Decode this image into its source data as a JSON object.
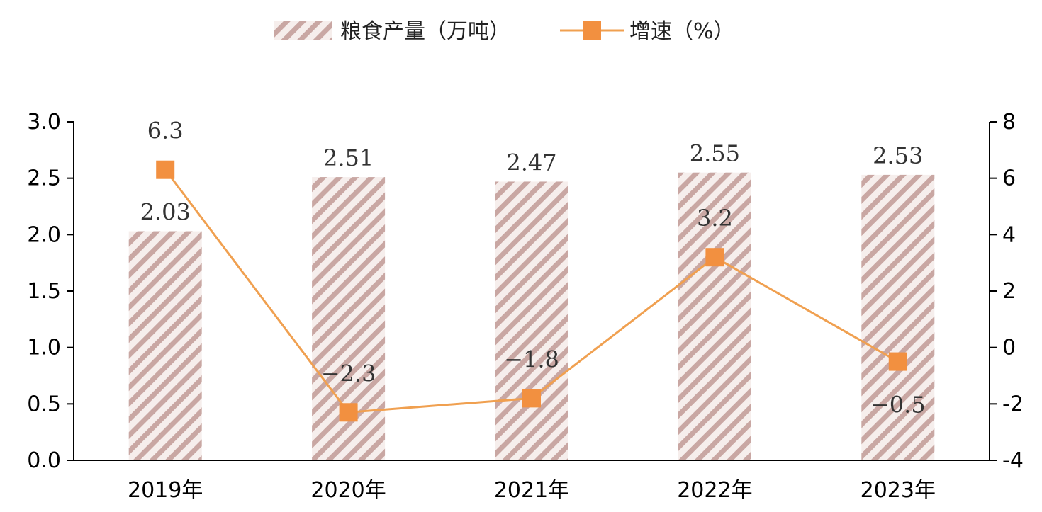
{
  "legend": {
    "bar_label": "粮食产量（万吨）",
    "line_label": "增速（%）"
  },
  "chart_data": {
    "type": "bar",
    "categories": [
      "2019年",
      "2020年",
      "2021年",
      "2022年",
      "2023年"
    ],
    "series": [
      {
        "name": "粮食产量（万吨）",
        "type": "bar",
        "axis": "left",
        "values": [
          2.03,
          2.51,
          2.47,
          2.55,
          2.53
        ],
        "labels": [
          "2.03",
          "2.51",
          "2.47",
          "2.55",
          "2.53"
        ]
      },
      {
        "name": "增速（%）",
        "type": "line",
        "axis": "right",
        "values": [
          6.3,
          -2.3,
          -1.8,
          3.2,
          -0.5
        ],
        "labels": [
          "6.3",
          "−2.3",
          "−1.8",
          "3.2",
          "−0.5"
        ]
      }
    ],
    "y_left": {
      "min": 0,
      "max": 3,
      "ticks": [
        "0.0",
        "0.5",
        "1.0",
        "1.5",
        "2.0",
        "2.5",
        "3.0"
      ]
    },
    "y_right": {
      "min": -4,
      "max": 8,
      "ticks": [
        "-4",
        "-2",
        "0",
        "2",
        "4",
        "6",
        "8"
      ]
    },
    "legend_position": "top-center",
    "grid": false,
    "colors": {
      "bar_stripe": "#c9a7a3",
      "line": "#f0a050",
      "marker": "#f29040"
    }
  }
}
